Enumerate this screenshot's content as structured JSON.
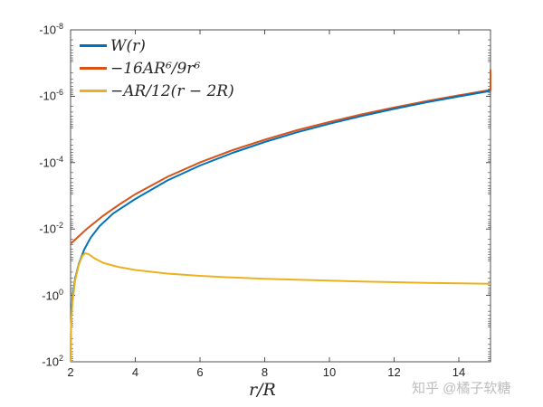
{
  "chart_data": {
    "type": "line",
    "title": "",
    "xlabel": "r/R",
    "ylabel": "",
    "xlim": [
      2,
      15
    ],
    "ylim_log_magnitude_exponents": [
      2,
      -8
    ],
    "yscale": "log (negative values, reversed)",
    "xticks": [
      "2",
      "4",
      "6",
      "8",
      "10",
      "12",
      "14"
    ],
    "yticks": [
      "-10^-8",
      "-10^-6",
      "-10^-4",
      "-10^-2",
      "-10^0",
      "-10^2"
    ],
    "legend_position": "upper left",
    "grid": false,
    "series": [
      {
        "name": "W(r)",
        "color": "#0072BD",
        "x": [
          2.0,
          2.2,
          2.5,
          3,
          4,
          6,
          8,
          10,
          12,
          15
        ],
        "y": [
          -100,
          -0.3,
          -0.05,
          -0.012,
          -0.0016,
          -0.00011,
          -1.9e-05,
          -5.2e-06,
          -1.8e-06,
          -4.8e-07
        ]
      },
      {
        "name": "-16AR^6/9r^6",
        "color": "#D95319",
        "x": [
          2,
          3,
          4,
          6,
          8,
          10,
          12,
          15
        ],
        "y": [
          -0.0278,
          -0.00244,
          -0.000434,
          -3.81e-05,
          -6.78e-06,
          -1.78e-06,
          -5.95e-07,
          -1.56e-07
        ]
      },
      {
        "name": "-AR/12(r-2R)",
        "color": "#EDB120",
        "x": [
          2.0,
          2.2,
          2.4,
          2.5,
          3,
          4,
          6,
          8,
          10,
          12,
          15
        ],
        "y": [
          -100,
          -0.4,
          -0.1,
          -0.08,
          -0.14,
          -0.22,
          -0.3,
          -0.35,
          -0.39,
          -0.42,
          -0.45
        ]
      }
    ]
  },
  "axes": {
    "yticks": [
      {
        "base": "-10",
        "exp": "-8"
      },
      {
        "base": "-10",
        "exp": "-6"
      },
      {
        "base": "-10",
        "exp": "-4"
      },
      {
        "base": "-10",
        "exp": "-2"
      },
      {
        "base": "-10",
        "exp": "0"
      },
      {
        "base": "-10",
        "exp": "2"
      }
    ],
    "xticks": [
      "2",
      "4",
      "6",
      "8",
      "10",
      "12",
      "14"
    ],
    "xlabel": "r/R"
  },
  "legend": [
    {
      "label": "W(r)",
      "color": "#0072BD"
    },
    {
      "label": "−16AR⁶/9r⁶",
      "color": "#D95319"
    },
    {
      "label": "−AR/12(r − 2R)",
      "color": "#EDB120"
    }
  ],
  "watermark": "知乎 @橘子软糖"
}
